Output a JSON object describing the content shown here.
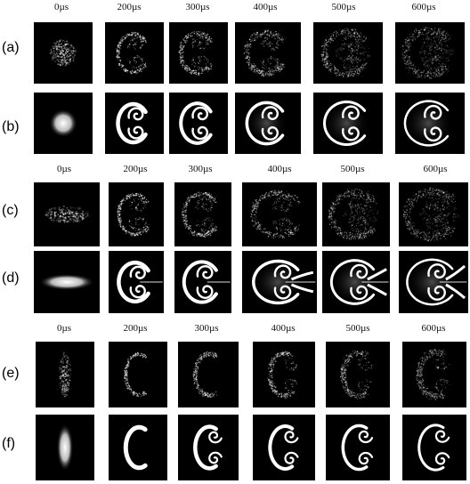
{
  "figure": {
    "group_a": {
      "time_labels": [
        "0µs",
        "200µs",
        "300µs",
        "400µs",
        "500µs",
        "600µs"
      ],
      "rows": [
        {
          "label": "(a)",
          "kind": "experiment",
          "shape": "round"
        },
        {
          "label": "(b)",
          "kind": "simulation",
          "shape": "round"
        }
      ]
    },
    "group_b": {
      "time_labels": [
        "0µs",
        "200µs",
        "300µs",
        "400µs",
        "500µs",
        "600µs"
      ],
      "rows": [
        {
          "label": "(c)",
          "kind": "experiment",
          "shape": "horizontal"
        },
        {
          "label": "(d)",
          "kind": "simulation",
          "shape": "horizontal"
        }
      ]
    },
    "group_c": {
      "time_labels": [
        "0µs",
        "200µs",
        "300µs",
        "400µs",
        "500µs",
        "600µs"
      ],
      "rows": [
        {
          "label": "(e)",
          "kind": "experiment",
          "shape": "vertical"
        },
        {
          "label": "(f)",
          "kind": "simulation",
          "shape": "vertical"
        }
      ]
    }
  }
}
